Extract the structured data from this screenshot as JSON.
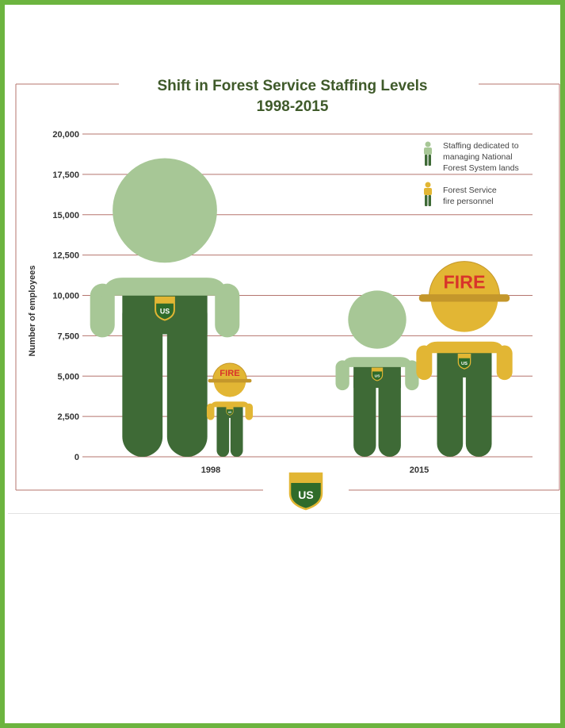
{
  "chart_data": {
    "type": "bar",
    "title": "Shift in Forest Service Staffing Levels",
    "subtitle": "1998-2015",
    "ylabel": "Number of employees",
    "xlabel": "",
    "categories": [
      "1998",
      "2015"
    ],
    "ylim": [
      0,
      20000
    ],
    "yticks": [
      0,
      2500,
      5000,
      7500,
      10000,
      12500,
      15000,
      17500,
      20000
    ],
    "ytick_labels": [
      "0",
      "2,500",
      "5,000",
      "7,500",
      "10,000",
      "12,500",
      "15,000",
      "17,500",
      "20,000"
    ],
    "grid": true,
    "legend_position": "top-right",
    "series": [
      {
        "name": "Staffing dedicated to managing National Forest System lands",
        "values": [
          18500,
          10300
        ],
        "color": "#a7c796"
      },
      {
        "name": "Forest Service fire personnel",
        "values": [
          5700,
          11900
        ],
        "color": "#e2b634"
      }
    ],
    "legend_lines": [
      [
        "Staffing dedicated to",
        "managing National",
        "Forest System lands"
      ],
      [
        "Forest Service",
        "fire personnel"
      ]
    ],
    "helmet_text": "FIRE",
    "colors": {
      "legs": "#3e6a36",
      "grid": "#b5756e",
      "accent_frame": "#6cb43f"
    },
    "icons": [
      "person-icon",
      "fire-helmet-icon",
      "usfs-shield-logo"
    ]
  }
}
